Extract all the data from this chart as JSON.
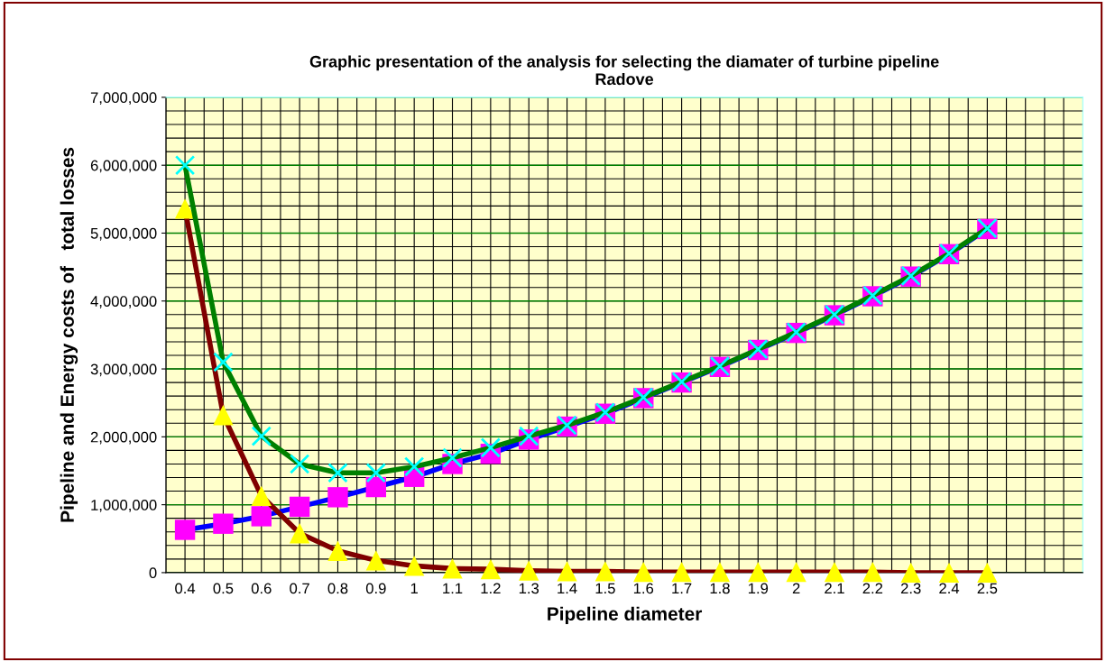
{
  "chart_data": {
    "type": "line",
    "title": "Graphic presentation of the analysis for selecting the diamater of turbine pipeline\nRadove",
    "xlabel": "Pipeline diameter",
    "ylabel": "Pipeline and Energy costs of   total losses",
    "categories": [
      "0.4",
      "0.5",
      "0.6",
      "0.7",
      "0.8",
      "0.9",
      "1",
      "1.1",
      "1.2",
      "1.3",
      "1.4",
      "1.5",
      "1.6",
      "1.7",
      "1.8",
      "1.9",
      "2",
      "2.1",
      "2.2",
      "2.3",
      "2.4",
      "2.5",
      null,
      null
    ],
    "series": [
      {
        "color": "#0000ff",
        "marker": "square",
        "colors": [
          "#ff00ff",
          "#ff00ff",
          "#ff00ff",
          "#ff00ff",
          "#ff00ff",
          "#ff00ff",
          "#ff00ff",
          "#ff00ff",
          "#ff00ff",
          "#ff00ff",
          "#ff00ff",
          "#ff00ff",
          "#ff00ff",
          "#ff00ff",
          "#ff00ff",
          "#ff00ff",
          "#ff00ff",
          "#ff00ff",
          "#ff00ff",
          "#ff00ff",
          "#ff00ff",
          "#ff00ff",
          "#ff00ff",
          "#ff00ff"
        ],
        "values": [
          630000,
          720000,
          830000,
          970000,
          1110000,
          1260000,
          1410000,
          1600000,
          1750000,
          1960000,
          2150000,
          2340000,
          2570000,
          2800000,
          3030000,
          3280000,
          3530000,
          3790000,
          4070000,
          4360000,
          4690000,
          5060000,
          null,
          null
        ]
      },
      {
        "color": "#800000",
        "marker": "triangle",
        "colors": [
          "#ffff00",
          "#ffff00",
          "#ffff00",
          "#ffff00",
          "#ffff00",
          "#ffff00",
          "#ffff00",
          "#ffff00",
          "#ffff00",
          "#ffff00",
          "#ffff00",
          "#ffff00",
          "#ffff00",
          "#ffff00",
          "#ffff00",
          "#ffff00",
          "#ffff00",
          "#ffff00",
          "#ffff00",
          "#ffff00",
          "#ffff00",
          "#ffff00",
          "#ffff00",
          "#ffff00"
        ],
        "values": [
          5360000,
          2320000,
          1130000,
          580000,
          320000,
          180000,
          100000,
          60000,
          50000,
          30000,
          20000,
          20000,
          10000,
          10000,
          10000,
          10000,
          10000,
          10000,
          10000,
          0,
          0,
          0,
          null,
          null
        ]
      },
      {
        "color": "#008000",
        "marker": "cross",
        "colors": [
          "#00ffff",
          "#00ffff",
          "#00ffff",
          "#00ffff",
          "#00ffff",
          "#00ffff",
          "#00ffff",
          "#00ffff",
          "#00ffff",
          "#00ffff",
          "#00ffff",
          "#00ffff",
          "#00ffff",
          "#00ffff",
          "#00ffff",
          "#00ffff",
          "#00ffff",
          "#00ffff",
          "#00ffff",
          "#00ffff",
          "#00ffff",
          "#00ffff",
          "#00ffff",
          "#00ffff"
        ],
        "values": [
          6000000,
          3100000,
          2010000,
          1600000,
          1470000,
          1470000,
          1560000,
          1690000,
          1840000,
          2010000,
          2170000,
          2360000,
          2580000,
          2810000,
          3040000,
          3290000,
          3540000,
          3800000,
          4080000,
          4370000,
          4700000,
          5070000,
          null,
          null
        ]
      }
    ],
    "ylim": [
      0,
      7000000
    ],
    "yticks": [
      0,
      {
        "value": 1000000,
        "label": "1,000,000"
      },
      {
        "value": 2000000,
        "label": "2,000,000"
      },
      {
        "value": 3000000,
        "label": "3,000,000"
      },
      {
        "value": 4000000,
        "label": "4,000,000"
      },
      {
        "value": 5000000,
        "label": "5,000,000"
      },
      {
        "value": 6000000,
        "label": "6,000,000"
      },
      {
        "value": 7000000,
        "label": "7,000,000"
      }
    ],
    "grid": true,
    "legend": false,
    "line_style": "solid"
  }
}
